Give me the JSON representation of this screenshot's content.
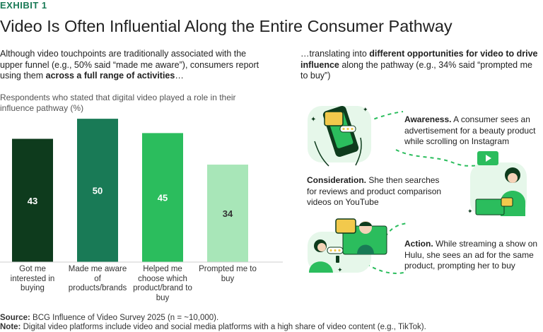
{
  "header": {
    "exhibit": "EXHIBIT 1",
    "title": "Video Is Often Influential Along the Entire Consumer Pathway"
  },
  "left_intro": {
    "part1": "Although video touchpoints are traditionally associated with the upper funnel (e.g., 50% said “made me aware”), consumers report using them ",
    "bold": "across a full range of activities",
    "part2": "…"
  },
  "right_intro": {
    "part1": "…translating into ",
    "bold": "different opportunities for video to drive influence",
    "part2": " along the pathway (e.g., 34% said “prompted me to buy”)"
  },
  "chart_data": {
    "type": "bar",
    "subtitle": "Respondents who stated that digital video played a role in their influence pathway (%)",
    "categories": [
      "Got me interested in buying",
      "Made me aware of products/brands",
      "Helped me choose which product/brand to buy",
      "Prompted me to buy"
    ],
    "values": [
      43,
      50,
      45,
      34
    ],
    "labels": [
      "43",
      "50",
      "45",
      "34"
    ],
    "colors": [
      "#0e3b1d",
      "#197a56",
      "#2bbd5d",
      "#a8e6b8"
    ],
    "label_colors": [
      "#ffffff",
      "#ffffff",
      "#ffffff",
      "#333333"
    ],
    "ylim": [
      0,
      52
    ],
    "xlabel": "",
    "ylabel": ""
  },
  "steps": {
    "awareness": {
      "bold": "Awareness.",
      "text": " A consumer sees an advertisement for a beauty product while scrolling on Instagram"
    },
    "consideration": {
      "bold": "Consideration.",
      "text": " She then searches for reviews and product comparison videos on YouTube"
    },
    "action": {
      "bold": "Action.",
      "text": " While streaming a show on Hulu, she sees an ad for the same product, prompting her to buy"
    }
  },
  "footer": {
    "source_label": "Source:",
    "source_text": " BCG Influence of Video Survey 2025 (n = ~10,000).",
    "note_label": "Note:",
    "note_text": " Digital video platforms include video and social media platforms with a high share of video content (e.g., TikTok)."
  },
  "colors": {
    "accent": "#197a56",
    "dark_green": "#0e3b1d",
    "mid_green": "#2bbd5d",
    "light_green": "#a8e6b8",
    "mint_bg": "#e6f7ea",
    "yellow": "#f2c94c"
  }
}
